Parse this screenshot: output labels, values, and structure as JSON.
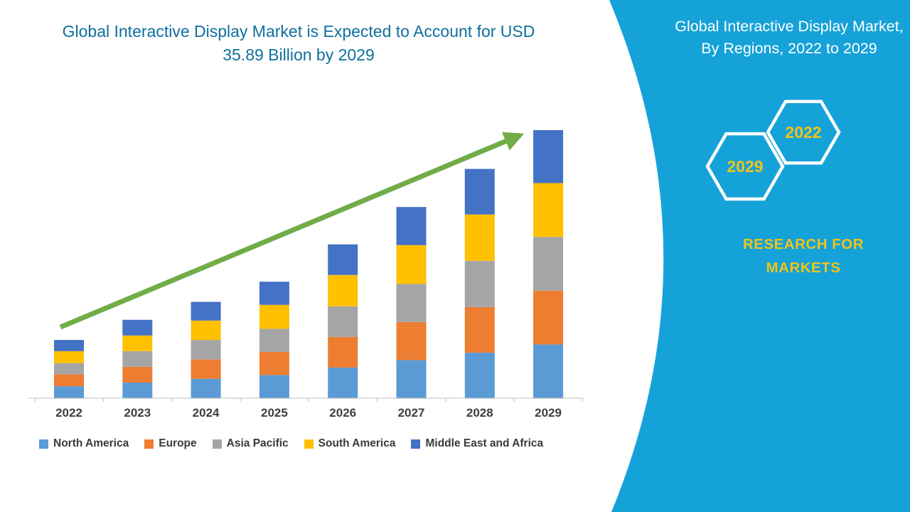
{
  "left": {
    "title": "Global Interactive Display Market is Expected to Account for USD 35.89 Billion by 2029"
  },
  "chart_data": {
    "type": "bar",
    "stacked": true,
    "title": "Global Interactive Display Market is Expected to Account for USD 35.89 Billion by 2029",
    "xlabel": "",
    "ylabel": "",
    "unit": "USD Billion",
    "ylim": [
      0,
      36
    ],
    "grid": false,
    "legend_position": "bottom",
    "annotation": "upward trend arrow",
    "categories": [
      "2022",
      "2023",
      "2024",
      "2025",
      "2026",
      "2027",
      "2028",
      "2029"
    ],
    "series": [
      {
        "name": "North America",
        "color": "#5b9bd5",
        "values": [
          1.6,
          2.1,
          2.6,
          3.1,
          4.1,
          5.1,
          6.1,
          7.2
        ]
      },
      {
        "name": "Europe",
        "color": "#ed7d31",
        "values": [
          1.6,
          2.1,
          2.6,
          3.1,
          4.1,
          5.1,
          6.1,
          7.2
        ]
      },
      {
        "name": "Asia Pacific",
        "color": "#a5a5a5",
        "values": [
          1.5,
          2.1,
          2.6,
          3.1,
          4.1,
          5.1,
          6.2,
          7.2
        ]
      },
      {
        "name": "South America",
        "color": "#ffc000",
        "values": [
          1.6,
          2.1,
          2.6,
          3.2,
          4.2,
          5.2,
          6.2,
          7.2
        ]
      },
      {
        "name": "Middle East and Africa",
        "color": "#4472c4",
        "values": [
          1.5,
          2.1,
          2.5,
          3.1,
          4.1,
          5.1,
          6.1,
          7.09
        ]
      }
    ],
    "totals": [
      7.8,
      10.5,
      12.9,
      15.6,
      20.6,
      25.6,
      30.7,
      35.89
    ]
  },
  "right_panel": {
    "title": "Global Interactive Display Market, By Regions, 2022 to 2029",
    "hexagons": [
      {
        "label": "2029"
      },
      {
        "label": "2022"
      }
    ],
    "brand": "RESEARCH FOR MARKETS",
    "background_color": "#15a2d8",
    "accent_color": "#f0c419"
  },
  "colors": {
    "title_blue": "#0f6f9f",
    "arrow_green": "#70ad47",
    "axis_gray": "#bfbfbf",
    "label_gray": "#3f3f3f"
  }
}
